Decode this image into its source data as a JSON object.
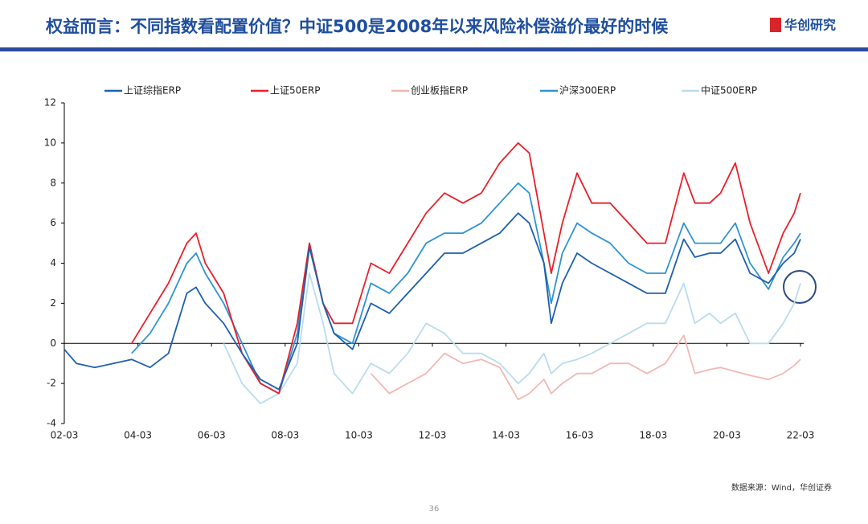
{
  "header": {
    "title": "权益而言：不同指数看配置价值？中证500是2008年以来风险补偿溢价最好的时候",
    "logo": "华创研究"
  },
  "chart_data": {
    "type": "line",
    "x": [
      2002.17,
      2002.5,
      2003,
      2003.5,
      2004,
      2004.5,
      2005,
      2005.5,
      2005.75,
      2006,
      2006.5,
      2007,
      2007.5,
      2008,
      2008.5,
      2008.83,
      2009.2,
      2009.5,
      2010,
      2010.5,
      2011,
      2011.5,
      2012,
      2012.5,
      2013,
      2013.5,
      2014,
      2014.5,
      2014.8,
      2015.2,
      2015.4,
      2015.7,
      2016.1,
      2016.5,
      2017,
      2017.5,
      2018,
      2018.5,
      2019,
      2019.3,
      2019.7,
      2020,
      2020.4,
      2020.8,
      2021.3,
      2021.7,
      2022.0,
      2022.17
    ],
    "xlim": [
      2002.17,
      2022.17
    ],
    "xticks": [
      {
        "value": 2002.17,
        "label": "02-03"
      },
      {
        "value": 2004.17,
        "label": "04-03"
      },
      {
        "value": 2006.17,
        "label": "06-03"
      },
      {
        "value": 2008.17,
        "label": "08-03"
      },
      {
        "value": 2010.17,
        "label": "10-03"
      },
      {
        "value": 2012.17,
        "label": "12-03"
      },
      {
        "value": 2014.17,
        "label": "14-03"
      },
      {
        "value": 2016.17,
        "label": "16-03"
      },
      {
        "value": 2018.17,
        "label": "18-03"
      },
      {
        "value": 2020.17,
        "label": "20-03"
      },
      {
        "value": 2022.17,
        "label": "22-03"
      }
    ],
    "ylim": [
      -4,
      12
    ],
    "yticks": [
      -4,
      -2,
      0,
      2,
      4,
      6,
      8,
      10,
      12
    ],
    "legend": "top",
    "series": [
      {
        "name": "上证综指ERP",
        "color": "#1f5fae",
        "values": [
          -0.3,
          -1,
          -1.2,
          -1,
          -0.8,
          -1.2,
          -0.5,
          2.5,
          2.8,
          2,
          1,
          -0.5,
          -1.8,
          -2.3,
          0,
          4.8,
          2,
          0.5,
          -0.3,
          2,
          1.5,
          2.5,
          3.5,
          4.5,
          4.5,
          5,
          5.5,
          6.5,
          6,
          4,
          1,
          3,
          4.5,
          4,
          3.5,
          3,
          2.5,
          2.5,
          5.2,
          4.3,
          4.5,
          4.5,
          5.2,
          3.5,
          3,
          4,
          4.5,
          5.2
        ]
      },
      {
        "name": "上证50ERP",
        "color": "#e8202a",
        "values": [
          null,
          null,
          null,
          null,
          0,
          1.5,
          3,
          5,
          5.5,
          4,
          2.5,
          -0.5,
          -2,
          -2.5,
          1,
          5,
          2,
          1,
          1,
          4,
          3.5,
          5,
          6.5,
          7.5,
          7,
          7.5,
          9,
          10,
          9.5,
          5.5,
          3.5,
          6,
          8.5,
          7,
          7,
          6,
          5,
          5,
          8.5,
          7,
          7,
          7.5,
          9,
          6,
          3.5,
          5.5,
          6.5,
          7.5
        ]
      },
      {
        "name": "创业板指ERP",
        "color": "#f2b8b3",
        "values": [
          null,
          null,
          null,
          null,
          null,
          null,
          null,
          null,
          null,
          null,
          null,
          null,
          null,
          null,
          null,
          null,
          null,
          null,
          null,
          -1.5,
          -2.5,
          -2,
          -1.5,
          -0.5,
          -1,
          -0.8,
          -1.2,
          -2.8,
          -2.5,
          -1.8,
          -2.5,
          -2,
          -1.5,
          -1.5,
          -1,
          -1,
          -1.5,
          -1,
          0.4,
          -1.5,
          -1.3,
          -1.2,
          -1.4,
          -1.6,
          -1.8,
          -1.5,
          -1.1,
          -0.8
        ]
      },
      {
        "name": "沪深300ERP",
        "color": "#2e93d4",
        "values": [
          null,
          null,
          null,
          null,
          -0.5,
          0.5,
          2,
          4,
          4.5,
          3.5,
          2,
          0,
          -2,
          -2.5,
          0.5,
          5,
          2,
          0.5,
          0,
          3,
          2.5,
          3.5,
          5,
          5.5,
          5.5,
          6,
          7,
          8,
          7.5,
          4,
          2,
          4.5,
          6,
          5.5,
          5,
          4,
          3.5,
          3.5,
          6,
          5,
          5,
          5,
          6,
          4,
          2.7,
          4.3,
          5,
          5.5
        ]
      },
      {
        "name": "中证500ERP",
        "color": "#b9dced",
        "values": [
          null,
          null,
          null,
          null,
          null,
          null,
          null,
          null,
          null,
          null,
          0,
          -2,
          -3,
          -2.5,
          -1,
          3.5,
          1,
          -1.5,
          -2.5,
          -1,
          -1.5,
          -0.5,
          1,
          0.5,
          -0.5,
          -0.5,
          -1,
          -2,
          -1.5,
          -0.5,
          -1.5,
          -1,
          -0.8,
          -0.5,
          0,
          0.5,
          1,
          1,
          3,
          1,
          1.5,
          1,
          1.5,
          0,
          0,
          1,
          2,
          3
        ]
      }
    ]
  },
  "footer": {
    "source": "数据来源：Wind，华创证券",
    "page": "36"
  }
}
